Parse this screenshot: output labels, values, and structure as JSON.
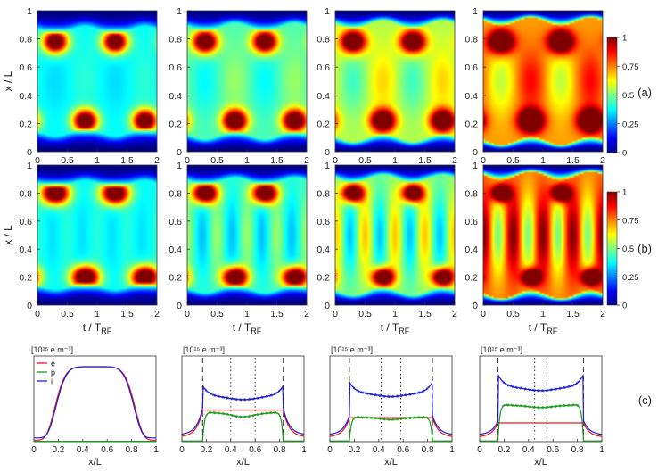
{
  "figure": {
    "row_labels": [
      "(a)",
      "(b)",
      "(c)"
    ],
    "colorbar_ticks": [
      "0",
      "0.25",
      "0.5",
      "0.75",
      "1"
    ]
  },
  "chart_data": [
    {
      "type": "heatmap",
      "row": "(a)",
      "panels": 4,
      "xlabel": "",
      "ylabel": "x / L",
      "xlim": [
        0,
        2
      ],
      "ylim": [
        0,
        1
      ],
      "xticks": [
        "0",
        "0.5",
        "1",
        "1.5",
        "2"
      ],
      "yticks": [
        "0",
        "0.2",
        "0.4",
        "0.6",
        "0.8",
        "1"
      ],
      "colorbar": {
        "min": 0,
        "max": 1,
        "ticks": [
          0,
          0.25,
          0.5,
          0.75,
          1
        ],
        "colormap": "jet"
      },
      "hot_spots": [
        {
          "t": 0.3,
          "x": 0.78
        },
        {
          "t": 1.3,
          "x": 0.78
        },
        {
          "t": 0.8,
          "x": 0.22
        },
        {
          "t": 1.8,
          "x": 0.22
        }
      ],
      "background_level": [
        0.38,
        0.45,
        0.55,
        0.72
      ]
    },
    {
      "type": "heatmap",
      "row": "(b)",
      "panels": 4,
      "xlabel": "t / T_RF",
      "ylabel": "x / L",
      "xlim": [
        0,
        2
      ],
      "ylim": [
        0,
        1
      ],
      "xticks": [
        "0",
        "0.5",
        "1",
        "1.5",
        "2"
      ],
      "yticks": [
        "0",
        "0.2",
        "0.4",
        "0.6",
        "0.8",
        "1"
      ],
      "colorbar": {
        "min": 0,
        "max": 1,
        "ticks": [
          0,
          0.25,
          0.5,
          0.75,
          1
        ],
        "colormap": "jet"
      },
      "background_level": [
        0.38,
        0.42,
        0.5,
        0.75
      ]
    },
    {
      "type": "line",
      "row": "(c)",
      "panels": 4,
      "xlabel": "x/L",
      "unit_label": "[10¹⁵ e m⁻³]",
      "xlim": [
        0,
        1
      ],
      "xticks": [
        "0",
        "0.2",
        "0.4",
        "0.6",
        "0.8",
        "1"
      ],
      "legend": [
        {
          "name": "e",
          "color": "#e41a1c"
        },
        {
          "name": "p",
          "color": "#1a9a1a"
        },
        {
          "name": "i",
          "color": "#1f1fd6"
        }
      ],
      "series_levels": [
        {
          "e": 1.0,
          "p": 0.0,
          "i": 1.0
        },
        {
          "e": 0.42,
          "p": 0.38,
          "i": 0.6
        },
        {
          "e": 0.32,
          "p": 0.32,
          "i": 0.64
        },
        {
          "e": 0.25,
          "p": 0.48,
          "i": 0.72
        }
      ],
      "dashed_lines_x": [
        null,
        [
          0.17,
          0.83
        ],
        [
          0.16,
          0.84
        ],
        [
          0.15,
          0.85
        ]
      ],
      "dotted_lines_x": [
        null,
        [
          0.4,
          0.6
        ],
        [
          0.42,
          0.58
        ],
        [
          0.45,
          0.55
        ]
      ]
    }
  ]
}
